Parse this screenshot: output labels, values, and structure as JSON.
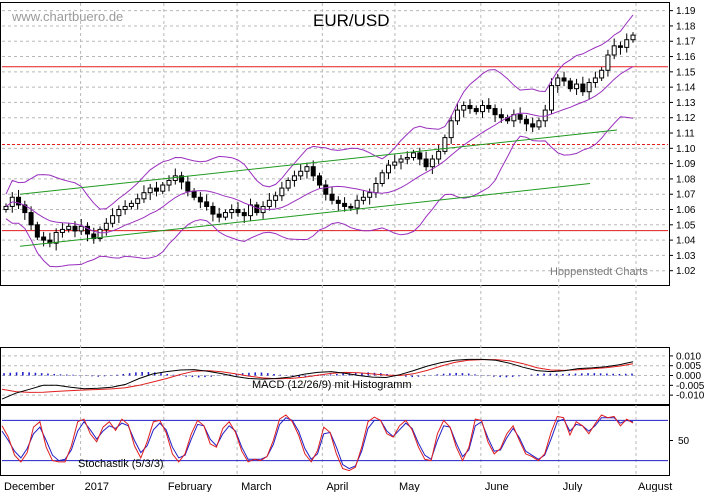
{
  "watermark": "www.chartbuero.de",
  "title": "EUR/USD",
  "credit": "Hoppenstedt Charts",
  "macd_label": "MACD (12/26/9) mit Histogramm",
  "stoch_label": "Stochastik (5/3/3)",
  "colors": {
    "candle": "#000000",
    "bollinger": "#9a2fbf",
    "channel": "#1f9a1f",
    "horizontal": "#e01e1e",
    "macd": "#000000",
    "signal": "#e01e1e",
    "histogram": "#2020c8",
    "stoch_k": "#e01e1e",
    "stoch_d": "#2020c8",
    "stoch_levels": "#2020c8",
    "grid": "#b8b8b8"
  },
  "chart_data": [
    {
      "type": "candlestick",
      "title": "EUR/USD",
      "xlabel": "",
      "ylabel": "",
      "x_ticks": [
        "December",
        "2017",
        "February",
        "March",
        "April",
        "May",
        "June",
        "July",
        "August"
      ],
      "ylim": [
        1.01,
        1.195
      ],
      "y_ticks": [
        "1.02",
        "1.03",
        "1.04",
        "1.05",
        "1.06",
        "1.07",
        "1.08",
        "1.09",
        "1.10",
        "1.11",
        "1.12",
        "1.13",
        "1.14",
        "1.15",
        "1.16",
        "1.17",
        "1.18",
        "1.19"
      ],
      "grid": true,
      "closes": [
        1.062,
        1.068,
        1.063,
        1.058,
        1.05,
        1.042,
        1.04,
        1.038,
        1.045,
        1.047,
        1.049,
        1.046,
        1.049,
        1.044,
        1.041,
        1.047,
        1.051,
        1.056,
        1.06,
        1.062,
        1.064,
        1.067,
        1.071,
        1.074,
        1.072,
        1.076,
        1.079,
        1.082,
        1.078,
        1.072,
        1.068,
        1.065,
        1.062,
        1.057,
        1.055,
        1.058,
        1.06,
        1.058,
        1.056,
        1.063,
        1.058,
        1.062,
        1.066,
        1.069,
        1.074,
        1.079,
        1.082,
        1.085,
        1.088,
        1.082,
        1.076,
        1.07,
        1.066,
        1.064,
        1.062,
        1.061,
        1.066,
        1.068,
        1.071,
        1.077,
        1.084,
        1.089,
        1.091,
        1.093,
        1.094,
        1.097,
        1.093,
        1.088,
        1.093,
        1.098,
        1.107,
        1.118,
        1.125,
        1.128,
        1.126,
        1.124,
        1.128,
        1.126,
        1.122,
        1.12,
        1.118,
        1.122,
        1.119,
        1.116,
        1.114,
        1.118,
        1.125,
        1.141,
        1.146,
        1.144,
        1.139,
        1.142,
        1.137,
        1.143,
        1.146,
        1.151,
        1.161,
        1.167,
        1.166,
        1.171,
        1.174
      ],
      "horizontal_levels": [
        1.1533,
        1.1025,
        1.0462
      ],
      "channel_upper": [
        [
          1.07,
          1.112
        ]
      ],
      "channel_lower": [
        [
          1.036,
          1.077
        ]
      ]
    },
    {
      "type": "line",
      "title": "MACD (12/26/9) mit Histogramm",
      "ylim": [
        -0.014,
        0.013
      ],
      "y_ticks": [
        "0.010",
        "0.005",
        "0.000",
        "-0.005",
        "-0.010"
      ],
      "grid": true,
      "series": [
        {
          "values": [
            -0.012,
            -0.009,
            -0.007,
            -0.005,
            -0.005,
            -0.006,
            -0.0067,
            -0.0065,
            -0.006,
            -0.0045,
            -0.0015,
            0.0008,
            0.002,
            0.0028,
            0.003,
            0.0022,
            0.001,
            -0.0005,
            -0.0015,
            -0.0018,
            -0.0015,
            -0.0008,
            0.0006,
            0.0016,
            0.002,
            0.0012,
            0.0,
            -0.0008,
            -0.001,
            0.0004,
            0.0025,
            0.0048,
            0.0066,
            0.0078,
            0.0082,
            0.0082,
            0.0078,
            0.0063,
            0.0042,
            0.0025,
            0.002,
            0.0024,
            0.0035,
            0.0039,
            0.0045,
            0.0055,
            0.007
          ]
        },
        {
          "values": [
            -0.007,
            -0.0082,
            -0.0086,
            -0.0085,
            -0.0081,
            -0.0077,
            -0.0074,
            -0.0071,
            -0.0068,
            -0.0062,
            -0.005,
            -0.0033,
            -0.0015,
            0.0005,
            0.0022,
            0.0025,
            0.0019,
            0.0009,
            -0.0003,
            -0.0012,
            -0.0016,
            -0.0015,
            -0.0009,
            0.0001,
            0.0011,
            0.0016,
            0.0014,
            0.0008,
            0.0002,
            0.0,
            0.0009,
            0.0026,
            0.0048,
            0.0067,
            0.0078,
            0.0081,
            0.0081,
            0.0075,
            0.006,
            0.004,
            0.0028,
            0.0026,
            0.0029,
            0.0034,
            0.004,
            0.0048,
            0.006
          ]
        },
        {
          "values": [
            0.0012,
            0.0014,
            0.0016,
            0.0018,
            0.0016,
            0.0014,
            0.0012,
            0.001,
            0.0008,
            0.0006,
            0.0005,
            0.0004,
            0.0002,
            -0.0002,
            -0.0004,
            -0.0006,
            -0.0004,
            -0.0002,
            0.0004,
            0.0008,
            0.0012,
            0.0016,
            0.0018,
            0.0018,
            0.0016,
            0.0012,
            0.0008,
            0.0004,
            -0.0002,
            -0.0006,
            -0.0008,
            -0.001,
            -0.0008,
            -0.0006,
            -0.0002,
            0.0002,
            0.0006,
            0.0009,
            0.0012,
            0.0014,
            0.0016,
            0.0015,
            0.0012,
            0.0008,
            0.0004,
            -0.0002,
            -0.0006,
            -0.0008,
            -0.0008,
            -0.0006,
            -0.0002,
            0.0003,
            0.0006,
            0.0008,
            0.001,
            0.0012,
            0.0014,
            0.0015,
            0.0016,
            0.0014,
            0.0012,
            0.0008,
            0.0004,
            -0.0002,
            -0.0006,
            -0.0008,
            -0.0006,
            -0.0003,
            0.0002,
            0.0006,
            0.0009,
            0.0011,
            0.0013,
            0.0012,
            0.001,
            0.0006,
            0.0002,
            -0.0003,
            -0.0006,
            -0.0008,
            -0.0009,
            -0.0007,
            -0.0004,
            0.0001,
            0.0005,
            0.0008,
            0.001,
            0.001,
            0.0009,
            0.0008,
            0.0009,
            0.001,
            0.0011,
            0.0012,
            0.0012,
            0.0011,
            0.001,
            0.0009,
            0.0008,
            0.0009,
            0.001
          ]
        }
      ]
    },
    {
      "type": "line",
      "title": "Stochastik (5/3/3)",
      "ylim": [
        0,
        100
      ],
      "y_ticks": [
        "50"
      ],
      "levels": [
        80,
        20
      ],
      "grid": true,
      "series": [
        {
          "values": [
            72,
            55,
            28,
            18,
            32,
            70,
            78,
            40,
            20,
            18,
            18,
            42,
            78,
            82,
            60,
            48,
            70,
            78,
            65,
            82,
            74,
            42,
            24,
            48,
            78,
            80,
            62,
            30,
            18,
            30,
            60,
            80,
            72,
            45,
            40,
            68,
            78,
            62,
            34,
            18,
            22,
            20,
            26,
            50,
            82,
            88,
            78,
            58,
            30,
            18,
            35,
            70,
            62,
            30,
            8,
            5,
            10,
            40,
            78,
            85,
            80,
            60,
            55,
            72,
            80,
            66,
            40,
            22,
            20,
            60,
            80,
            70,
            40,
            20,
            40,
            82,
            80,
            48,
            30,
            38,
            60,
            72,
            50,
            30,
            26,
            20,
            30,
            62,
            86,
            84,
            58,
            78,
            72,
            60,
            75,
            88,
            84,
            86,
            72,
            82,
            76
          ]
        },
        {
          "values": [
            64,
            50,
            34,
            24,
            38,
            60,
            70,
            50,
            28,
            20,
            22,
            36,
            64,
            78,
            66,
            52,
            64,
            72,
            68,
            76,
            72,
            50,
            32,
            42,
            66,
            76,
            66,
            40,
            24,
            28,
            52,
            74,
            72,
            52,
            42,
            60,
            72,
            64,
            40,
            22,
            22,
            22,
            26,
            44,
            74,
            84,
            80,
            64,
            38,
            22,
            30,
            60,
            62,
            40,
            14,
            8,
            12,
            34,
            68,
            80,
            80,
            64,
            56,
            66,
            76,
            68,
            46,
            28,
            22,
            50,
            72,
            70,
            46,
            26,
            36,
            72,
            78,
            54,
            34,
            36,
            54,
            68,
            54,
            34,
            28,
            22,
            28,
            52,
            78,
            82,
            64,
            74,
            72,
            64,
            72,
            84,
            84,
            84,
            76,
            80,
            78
          ]
        }
      ]
    }
  ]
}
